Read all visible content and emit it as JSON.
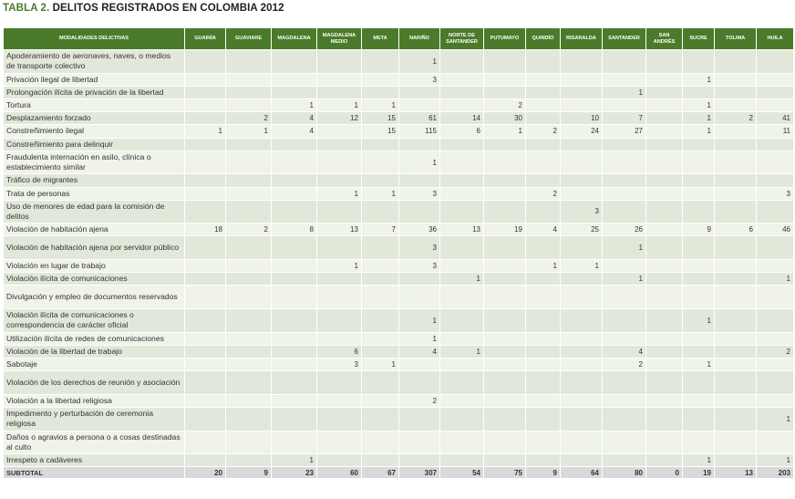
{
  "title": {
    "prefix": "TABLA 2.",
    "text": "DELITOS REGISTRADOS EN COLOMBIA 2012"
  },
  "colors": {
    "header": "#4a7a2a",
    "row_dark": "#e1e8d9",
    "row_light": "#eff3ea",
    "subtotal": "#d9d9d9"
  },
  "columns": [
    "MODALIDADES DELICTIVAS",
    "GUAINÍA",
    "GUAVIARE",
    "MAGDALENA",
    "MAGDALENA MEDIO",
    "META",
    "NARIÑO",
    "NORTE DE SANTANDER",
    "PUTUMAYO",
    "QUINDÍO",
    "RISARALDA",
    "SANTANDER",
    "SAN ANDRÉS",
    "SUCRE",
    "TOLIMA",
    "HUILA"
  ],
  "rows": [
    {
      "label": "Apoderamiento de aeronaves, naves, o medios de transporte colectivo",
      "values": [
        "",
        "",
        "",
        "",
        "",
        "1",
        "",
        "",
        "",
        "",
        "",
        "",
        "",
        "",
        ""
      ]
    },
    {
      "label": "Privación ilegal de libertad",
      "values": [
        "",
        "",
        "",
        "",
        "",
        "3",
        "",
        "",
        "",
        "",
        "",
        "",
        "1",
        "",
        ""
      ]
    },
    {
      "label": "Prolongación ilícita de privación de la libertad",
      "values": [
        "",
        "",
        "",
        "",
        "",
        "",
        "",
        "",
        "",
        "",
        "1",
        "",
        "",
        "",
        ""
      ]
    },
    {
      "label": "Tortura",
      "values": [
        "",
        "",
        "1",
        "1",
        "1",
        "",
        "",
        "2",
        "",
        "",
        "",
        "",
        "1",
        "",
        ""
      ]
    },
    {
      "label": "Desplazamiento forzado",
      "values": [
        "",
        "2",
        "4",
        "12",
        "15",
        "61",
        "14",
        "30",
        "",
        "10",
        "7",
        "",
        "1",
        "2",
        "41"
      ]
    },
    {
      "label": "Constreñimiento ilegal",
      "values": [
        "1",
        "1",
        "4",
        "",
        "15",
        "115",
        "6",
        "1",
        "2",
        "24",
        "27",
        "",
        "1",
        "",
        "11"
      ]
    },
    {
      "label": "Constreñimiento para delinquir",
      "values": [
        "",
        "",
        "",
        "",
        "",
        "",
        "",
        "",
        "",
        "",
        "",
        "",
        "",
        "",
        ""
      ]
    },
    {
      "label": "Fraudulenta internación en asilo, clínica o establecimiento similar",
      "values": [
        "",
        "",
        "",
        "",
        "",
        "1",
        "",
        "",
        "",
        "",
        "",
        "",
        "",
        "",
        ""
      ]
    },
    {
      "label": "Tráfico de migrantes",
      "values": [
        "",
        "",
        "",
        "",
        "",
        "",
        "",
        "",
        "",
        "",
        "",
        "",
        "",
        "",
        ""
      ]
    },
    {
      "label": "Trata de personas",
      "values": [
        "",
        "",
        "",
        "1",
        "1",
        "3",
        "",
        "",
        "2",
        "",
        "",
        "",
        "",
        "",
        "3"
      ]
    },
    {
      "label": "Uso de menores de edad para la comisión de delitos",
      "values": [
        "",
        "",
        "",
        "",
        "",
        "",
        "",
        "",
        "",
        "3",
        "",
        "",
        "",
        "",
        ""
      ]
    },
    {
      "label": "Violación de habitación ajena",
      "values": [
        "18",
        "2",
        "8",
        "13",
        "7",
        "36",
        "13",
        "19",
        "4",
        "25",
        "26",
        "",
        "9",
        "6",
        "46"
      ]
    },
    {
      "label": "Violación de habitación ajena por servidor público",
      "values": [
        "",
        "",
        "",
        "",
        "",
        "3",
        "",
        "",
        "",
        "",
        "1",
        "",
        "",
        "",
        ""
      ]
    },
    {
      "label": "Violación en lugar de trabajo",
      "values": [
        "",
        "",
        "",
        "1",
        "",
        "3",
        "",
        "",
        "1",
        "1",
        "",
        "",
        "",
        "",
        ""
      ]
    },
    {
      "label": "Violación ilícita de comunicaciones",
      "values": [
        "",
        "",
        "",
        "",
        "",
        "",
        "1",
        "",
        "",
        "",
        "1",
        "",
        "",
        "",
        "1"
      ]
    },
    {
      "label": "Divulgación y empleo de documentos reservados",
      "values": [
        "",
        "",
        "",
        "",
        "",
        "",
        "",
        "",
        "",
        "",
        "",
        "",
        "",
        "",
        ""
      ]
    },
    {
      "label": "Violación ilícita de comunicaciones o correspondencia de carácter oficial",
      "values": [
        "",
        "",
        "",
        "",
        "",
        "1",
        "",
        "",
        "",
        "",
        "",
        "",
        "1",
        "",
        ""
      ]
    },
    {
      "label": "Utilización ilícita de redes de comunicaciones",
      "values": [
        "",
        "",
        "",
        "",
        "",
        "1",
        "",
        "",
        "",
        "",
        "",
        "",
        "",
        "",
        ""
      ]
    },
    {
      "label": "Violación de la libertad de trabajo",
      "values": [
        "",
        "",
        "",
        "6",
        "",
        "4",
        "1",
        "",
        "",
        "",
        "4",
        "",
        "",
        "",
        "2"
      ]
    },
    {
      "label": "Sabotaje",
      "values": [
        "",
        "",
        "",
        "3",
        "1",
        "",
        "",
        "",
        "",
        "",
        "2",
        "",
        "1",
        "",
        ""
      ]
    },
    {
      "label": "Violación de los derechos de reunión y asociación",
      "values": [
        "",
        "",
        "",
        "",
        "",
        "",
        "",
        "",
        "",
        "",
        "",
        "",
        "",
        "",
        ""
      ]
    },
    {
      "label": "Violación a la libertad religiosa",
      "values": [
        "",
        "",
        "",
        "",
        "",
        "2",
        "",
        "",
        "",
        "",
        "",
        "",
        "",
        "",
        ""
      ]
    },
    {
      "label": "Impedimento y perturbación de ceremonia religiosa",
      "values": [
        "",
        "",
        "",
        "",
        "",
        "",
        "",
        "",
        "",
        "",
        "",
        "",
        "",
        "",
        "1"
      ]
    },
    {
      "label": "Daños o agravios a persona o a cosas destinadas al culto",
      "values": [
        "",
        "",
        "",
        "",
        "",
        "",
        "",
        "",
        "",
        "",
        "",
        "",
        "",
        "",
        ""
      ]
    },
    {
      "label": "Irrespeto a cadáveres",
      "values": [
        "",
        "",
        "1",
        "",
        "",
        "",
        "",
        "",
        "",
        "",
        "",
        "",
        "1",
        "",
        "1"
      ]
    }
  ],
  "subtotal": {
    "label": "SUBTOTAL",
    "values": [
      "20",
      "9",
      "23",
      "60",
      "67",
      "307",
      "54",
      "75",
      "9",
      "64",
      "80",
      "0",
      "19",
      "13",
      "203"
    ]
  }
}
